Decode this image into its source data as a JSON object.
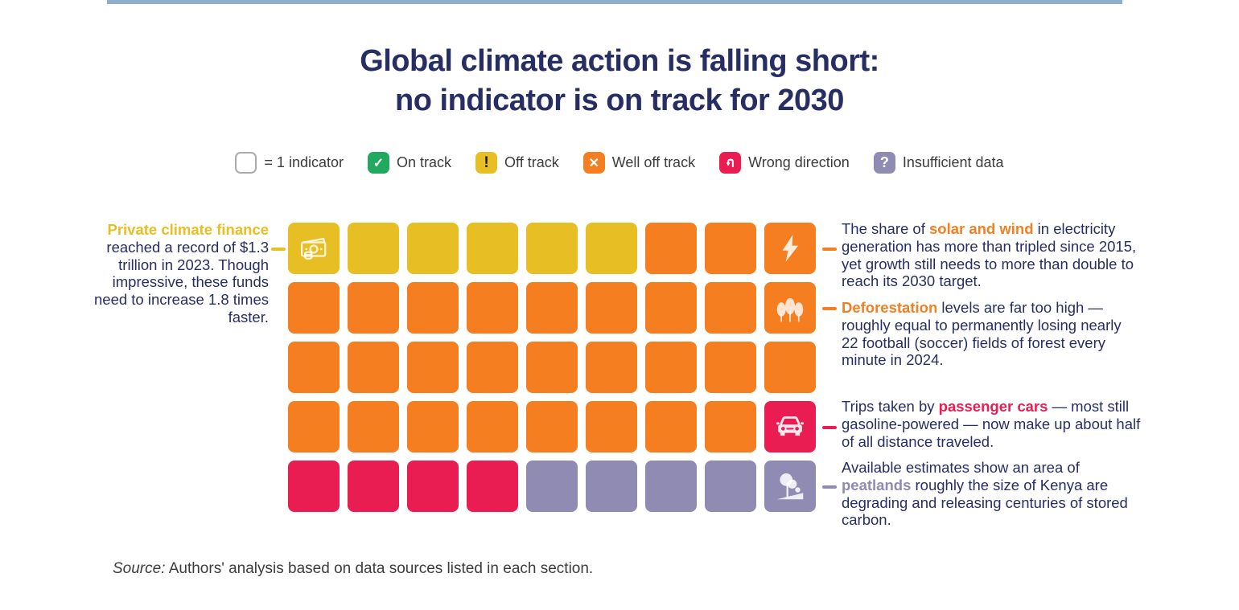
{
  "colors": {
    "navy": "#272E63",
    "on_track": "#21A95F",
    "off_track": "#E7BE23",
    "well_off_track": "#F57E20",
    "wrong_direction": "#E91D51",
    "insufficient_data": "#908BB2",
    "legend_text": "#3C3C3C",
    "top_rule": "#8FAECB",
    "unit_square_border": "#ABABAB"
  },
  "title": {
    "line1": "Global climate action is falling short:",
    "line2": "no indicator is on track for 2030"
  },
  "legend": {
    "items": [
      {
        "label": "= 1 indicator",
        "type": "unit",
        "glyph": ""
      },
      {
        "label": "On track",
        "type": "on_track",
        "glyph": "✓"
      },
      {
        "label": "Off track",
        "type": "off_track",
        "glyph": "!"
      },
      {
        "label": "Well off track",
        "type": "well_off_track",
        "glyph": "✕"
      },
      {
        "label": "Wrong direction",
        "type": "wrong_direction",
        "glyph": "u-turn-arrow"
      },
      {
        "label": "Insufficient data",
        "type": "insufficient_data",
        "glyph": "?"
      }
    ]
  },
  "annotations": {
    "left": {
      "highlight": "Private climate finance",
      "text": " reached a record of $1.3 trillion in 2023. Though impressive, these funds need to increase 1.8 times faster."
    },
    "right": [
      {
        "pre": "The share of ",
        "highlight": "solar and wind",
        "post": " in electricity generation has more than tripled since 2015, yet growth still needs to more than double to reach its 2030 target."
      },
      {
        "pre": "",
        "highlight": "Deforestation",
        "post": " levels are far too high — roughly equal to permanently losing nearly 22 football (soccer) fields of forest every minute in 2024."
      },
      {
        "pre": "Trips taken by ",
        "highlight": "passenger cars",
        "post": " — most still gasoline-powered — now make up about half of all distance traveled."
      },
      {
        "pre": "Available estimates show an area of ",
        "highlight": "peatlands",
        "post": " roughly the size of Kenya are degrading and releasing centuries of stored carbon."
      }
    ]
  },
  "source": {
    "label": "Source:",
    "text": " Authors' analysis based on data sources listed in each section."
  },
  "chart_data": {
    "type": "waffle",
    "title": "Global climate action is falling short: no indicator is on track for 2030",
    "unit_note": "1 square = 1 indicator",
    "rows": 5,
    "cols": 9,
    "total_indicators": 45,
    "status_counts": {
      "on_track": 0,
      "off_track": 6,
      "well_off_track": 29,
      "wrong_direction": 5,
      "insufficient_data": 5
    },
    "status_key": {
      "off": "off_track",
      "well": "well_off_track",
      "wrong": "wrong_direction",
      "insuf": "insufficient_data"
    },
    "icon_key": {
      "money": "private-climate-finance",
      "solar": "solar-and-wind",
      "trees": "deforestation",
      "car": "passenger-cars",
      "peatland": "peatlands"
    },
    "grid_rows": [
      [
        "off:money",
        "off",
        "off",
        "off",
        "off",
        "off",
        "well",
        "well",
        "well:solar"
      ],
      [
        "well",
        "well",
        "well",
        "well",
        "well",
        "well",
        "well",
        "well",
        "well:trees"
      ],
      [
        "well",
        "well",
        "well",
        "well",
        "well",
        "well",
        "well",
        "well",
        "well"
      ],
      [
        "well",
        "well",
        "well",
        "well",
        "well",
        "well",
        "well",
        "well",
        "wrong:car"
      ],
      [
        "wrong",
        "wrong",
        "wrong",
        "wrong",
        "insuf",
        "insuf",
        "insuf",
        "insuf",
        "insuf:peatland"
      ]
    ]
  }
}
